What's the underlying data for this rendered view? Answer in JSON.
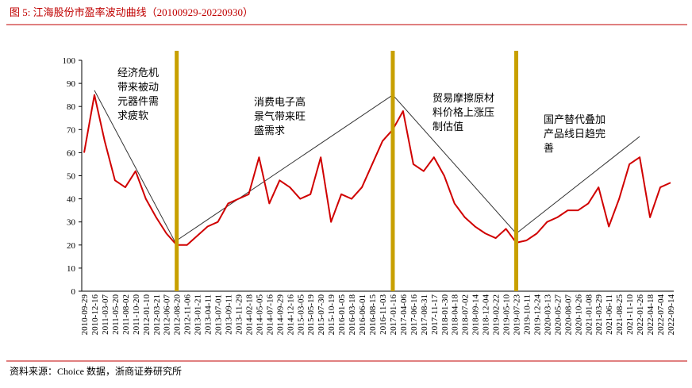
{
  "chart_data": {
    "type": "line",
    "title": "图 5:  江海股份市盈率波动曲线（20100929-20220930）",
    "source": "资料来源：Choice 数据，浙商证券研究所",
    "categories": [
      "2010-09-29",
      "2010-12-16",
      "2011-03-07",
      "2011-05-20",
      "2011-08-02",
      "2011-10-20",
      "2012-01-10",
      "2012-03-21",
      "2012-06-07",
      "2012-08-20",
      "2012-11-06",
      "2013-01-21",
      "2013-04-11",
      "2013-07-01",
      "2013-09-11",
      "2013-11-29",
      "2014-02-18",
      "2014-05-05",
      "2014-07-16",
      "2014-09-29",
      "2014-12-16",
      "2015-03-05",
      "2015-05-19",
      "2015-07-30",
      "2015-10-19",
      "2016-01-05",
      "2016-03-18",
      "2016-06-01",
      "2016-08-15",
      "2016-11-03",
      "2017-01-16",
      "2017-04-06",
      "2017-06-16",
      "2017-08-31",
      "2017-11-17",
      "2018-01-30",
      "2018-04-18",
      "2018-07-02",
      "2018-09-14",
      "2018-12-04",
      "2019-02-22",
      "2019-05-10",
      "2019-07-23",
      "2019-10-11",
      "2019-12-24",
      "2020-03-13",
      "2020-05-27",
      "2020-08-07",
      "2020-10-26",
      "2021-01-08",
      "2021-03-29",
      "2021-06-11",
      "2021-08-25",
      "2021-11-10",
      "2022-01-26",
      "2022-04-18",
      "2022-07-04",
      "2022-09-14"
    ],
    "series": [
      {
        "color": "#d00000",
        "values": [
          60,
          85,
          65,
          48,
          45,
          52,
          40,
          32,
          25,
          20,
          20,
          24,
          28,
          30,
          38,
          40,
          42,
          58,
          38,
          48,
          45,
          40,
          42,
          58,
          30,
          42,
          40,
          45,
          55,
          65,
          70,
          78,
          55,
          52,
          58,
          50,
          38,
          32,
          28,
          25,
          23,
          27,
          21,
          22,
          25,
          30,
          32,
          35,
          35,
          38,
          45,
          28,
          40,
          55,
          58,
          32,
          45,
          47
        ]
      }
    ],
    "ylim": [
      0,
      100
    ],
    "yticks": [
      0,
      10,
      20,
      30,
      40,
      50,
      60,
      70,
      80,
      90,
      100
    ],
    "vlines": {
      "color": "#c8a000",
      "dates": [
        "2012-08-20",
        "2017-01-16",
        "2019-07-23"
      ]
    },
    "trend_lines": [
      {
        "from": {
          "x": "2010-12-16",
          "y": 87
        },
        "to": {
          "x": "2012-08-20",
          "y": 20
        }
      },
      {
        "from": {
          "x": "2012-08-20",
          "y": 22
        },
        "to": {
          "x": "2017-01-16",
          "y": 85
        }
      },
      {
        "from": {
          "x": "2017-01-16",
          "y": 85
        },
        "to": {
          "x": "2019-07-23",
          "y": 25
        }
      },
      {
        "from": {
          "x": "2019-07-23",
          "y": 25
        },
        "to": {
          "x": "2022-01-26",
          "y": 67
        }
      }
    ],
    "annotations": [
      {
        "lines": [
          "经济危机",
          "带来被动",
          "元器件需",
          "求疲软"
        ]
      },
      {
        "lines": [
          "消费电子高",
          "景气带来旺",
          "盛需求"
        ]
      },
      {
        "lines": [
          "贸易摩擦原材",
          "料价格上涨压",
          "制估值"
        ]
      },
      {
        "lines": [
          "国产替代叠加",
          "产品线日趋完",
          "善"
        ]
      }
    ]
  }
}
